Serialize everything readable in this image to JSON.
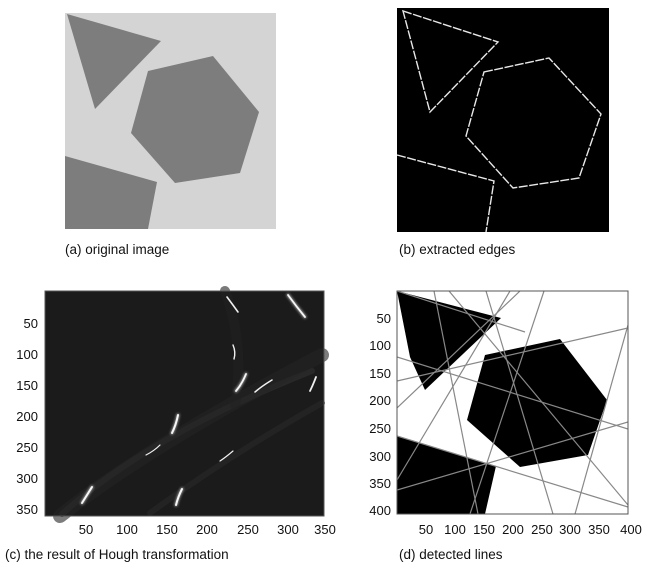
{
  "figure": {
    "panels": [
      {
        "id": "a",
        "caption": "(a) original image"
      },
      {
        "id": "b",
        "caption": "(b) extracted edges"
      },
      {
        "id": "c",
        "caption": "(c) the result of Hough transformation"
      },
      {
        "id": "d",
        "caption": "(d) detected lines"
      }
    ]
  },
  "axes": {
    "hough": {
      "x_ticks": [
        "50",
        "100",
        "150",
        "200",
        "250",
        "300",
        "350"
      ],
      "y_ticks": [
        "50",
        "100",
        "150",
        "200",
        "250",
        "300",
        "350"
      ]
    },
    "lines": {
      "x_ticks": [
        "50",
        "100",
        "150",
        "200",
        "250",
        "300",
        "350",
        "400"
      ],
      "y_ticks": [
        "50",
        "100",
        "150",
        "200",
        "250",
        "300",
        "350",
        "400"
      ]
    }
  },
  "colors": {
    "background_gray": "#d4d4d4",
    "shape_gray": "#7d7d7d",
    "edge_white": "#e8e8e8",
    "hough_bg": "#1b1b1b"
  }
}
